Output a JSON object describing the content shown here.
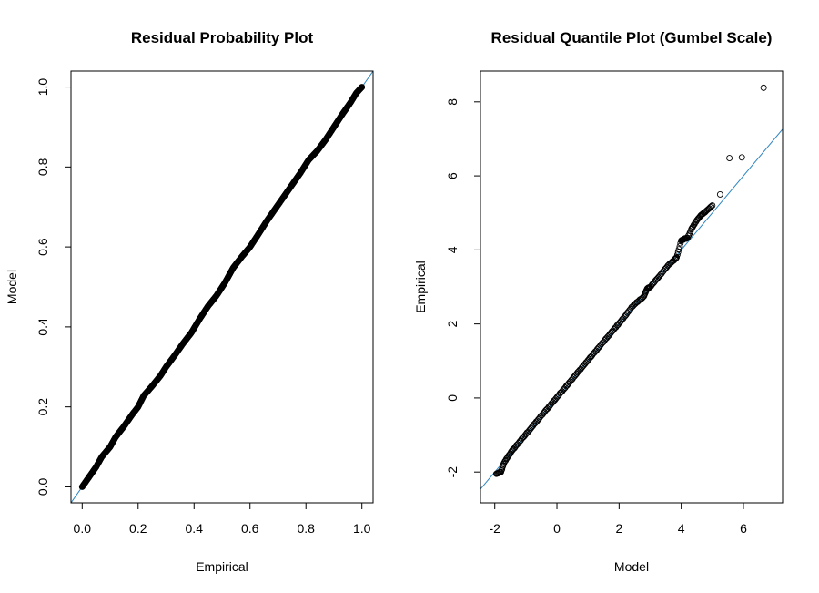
{
  "chart_data": [
    {
      "type": "scatter",
      "title": "Residual Probability Plot",
      "xlabel": "Empirical",
      "ylabel": "Model",
      "xlim": [
        0.0,
        1.0
      ],
      "ylim": [
        0.0,
        1.0
      ],
      "xticks": [
        0.0,
        0.2,
        0.4,
        0.6,
        0.8,
        1.0
      ],
      "xtick_labels": [
        "0.0",
        "0.2",
        "0.4",
        "0.6",
        "0.8",
        "1.0"
      ],
      "yticks": [
        0.0,
        0.2,
        0.4,
        0.6,
        0.8,
        1.0
      ],
      "ytick_labels": [
        "0.0",
        "0.2",
        "0.4",
        "0.6",
        "0.8",
        "1.0"
      ],
      "reference_line": {
        "intercept": 0,
        "slope": 1,
        "color": "#2e86c1"
      },
      "point_color": "#000000",
      "n_points": 800,
      "grid": false,
      "series": [
        {
          "x": [
            0.0,
            0.01,
            0.03,
            0.05,
            0.07,
            0.1,
            0.12,
            0.15,
            0.18,
            0.2,
            0.22,
            0.25,
            0.28,
            0.3,
            0.33,
            0.36,
            0.39,
            0.42,
            0.45,
            0.48,
            0.51,
            0.54,
            0.57,
            0.6,
            0.63,
            0.66,
            0.69,
            0.72,
            0.75,
            0.78,
            0.81,
            0.84,
            0.87,
            0.9,
            0.93,
            0.96,
            0.98,
            1.0
          ],
          "y": [
            0.0,
            0.01,
            0.03,
            0.05,
            0.075,
            0.1,
            0.125,
            0.152,
            0.182,
            0.2,
            0.228,
            0.252,
            0.278,
            0.3,
            0.328,
            0.358,
            0.385,
            0.42,
            0.452,
            0.478,
            0.51,
            0.548,
            0.575,
            0.6,
            0.632,
            0.665,
            0.695,
            0.725,
            0.755,
            0.785,
            0.818,
            0.84,
            0.868,
            0.9,
            0.932,
            0.962,
            0.985,
            1.0
          ]
        }
      ]
    },
    {
      "type": "scatter",
      "title": "Residual Quantile Plot (Gumbel Scale)",
      "xlabel": "Model",
      "ylabel": "Empirical",
      "xlim": [
        -2.1,
        6.9
      ],
      "ylim": [
        -2.4,
        8.4
      ],
      "xticks": [
        -2,
        0,
        2,
        4,
        6
      ],
      "xtick_labels": [
        "-2",
        "0",
        "2",
        "4",
        "6"
      ],
      "yticks": [
        -2,
        0,
        2,
        4,
        6,
        8
      ],
      "ytick_labels": [
        "-2",
        "0",
        "2",
        "4",
        "6",
        "8"
      ],
      "reference_line": {
        "intercept": 0,
        "slope": 1,
        "color": "#2e86c1"
      },
      "point_color": "#000000",
      "grid": false,
      "series": [
        {
          "x": [
            -1.95,
            -1.8,
            -1.7,
            -1.55,
            -1.4,
            -1.2,
            -1.0,
            -0.8,
            -0.6,
            -0.4,
            -0.2,
            0.0,
            0.2,
            0.4,
            0.6,
            0.8,
            1.0,
            1.2,
            1.4,
            1.6,
            1.8,
            2.0,
            2.2,
            2.4,
            2.6,
            2.8,
            2.9,
            3.0,
            3.2,
            3.4,
            3.6,
            3.8,
            3.85,
            4.0,
            4.1,
            4.2,
            4.35,
            4.5,
            4.65,
            4.8,
            5.0,
            5.25,
            5.55,
            5.95,
            6.65
          ],
          "y": [
            -2.05,
            -2.0,
            -1.75,
            -1.55,
            -1.38,
            -1.18,
            -0.98,
            -0.78,
            -0.58,
            -0.38,
            -0.18,
            0.02,
            0.22,
            0.42,
            0.62,
            0.82,
            1.02,
            1.22,
            1.42,
            1.62,
            1.82,
            2.02,
            2.22,
            2.45,
            2.6,
            2.75,
            2.95,
            3.0,
            3.2,
            3.4,
            3.6,
            3.75,
            3.8,
            4.25,
            4.3,
            4.32,
            4.6,
            4.8,
            4.95,
            5.05,
            5.2,
            5.5,
            6.48,
            6.5,
            8.38
          ]
        }
      ]
    }
  ]
}
